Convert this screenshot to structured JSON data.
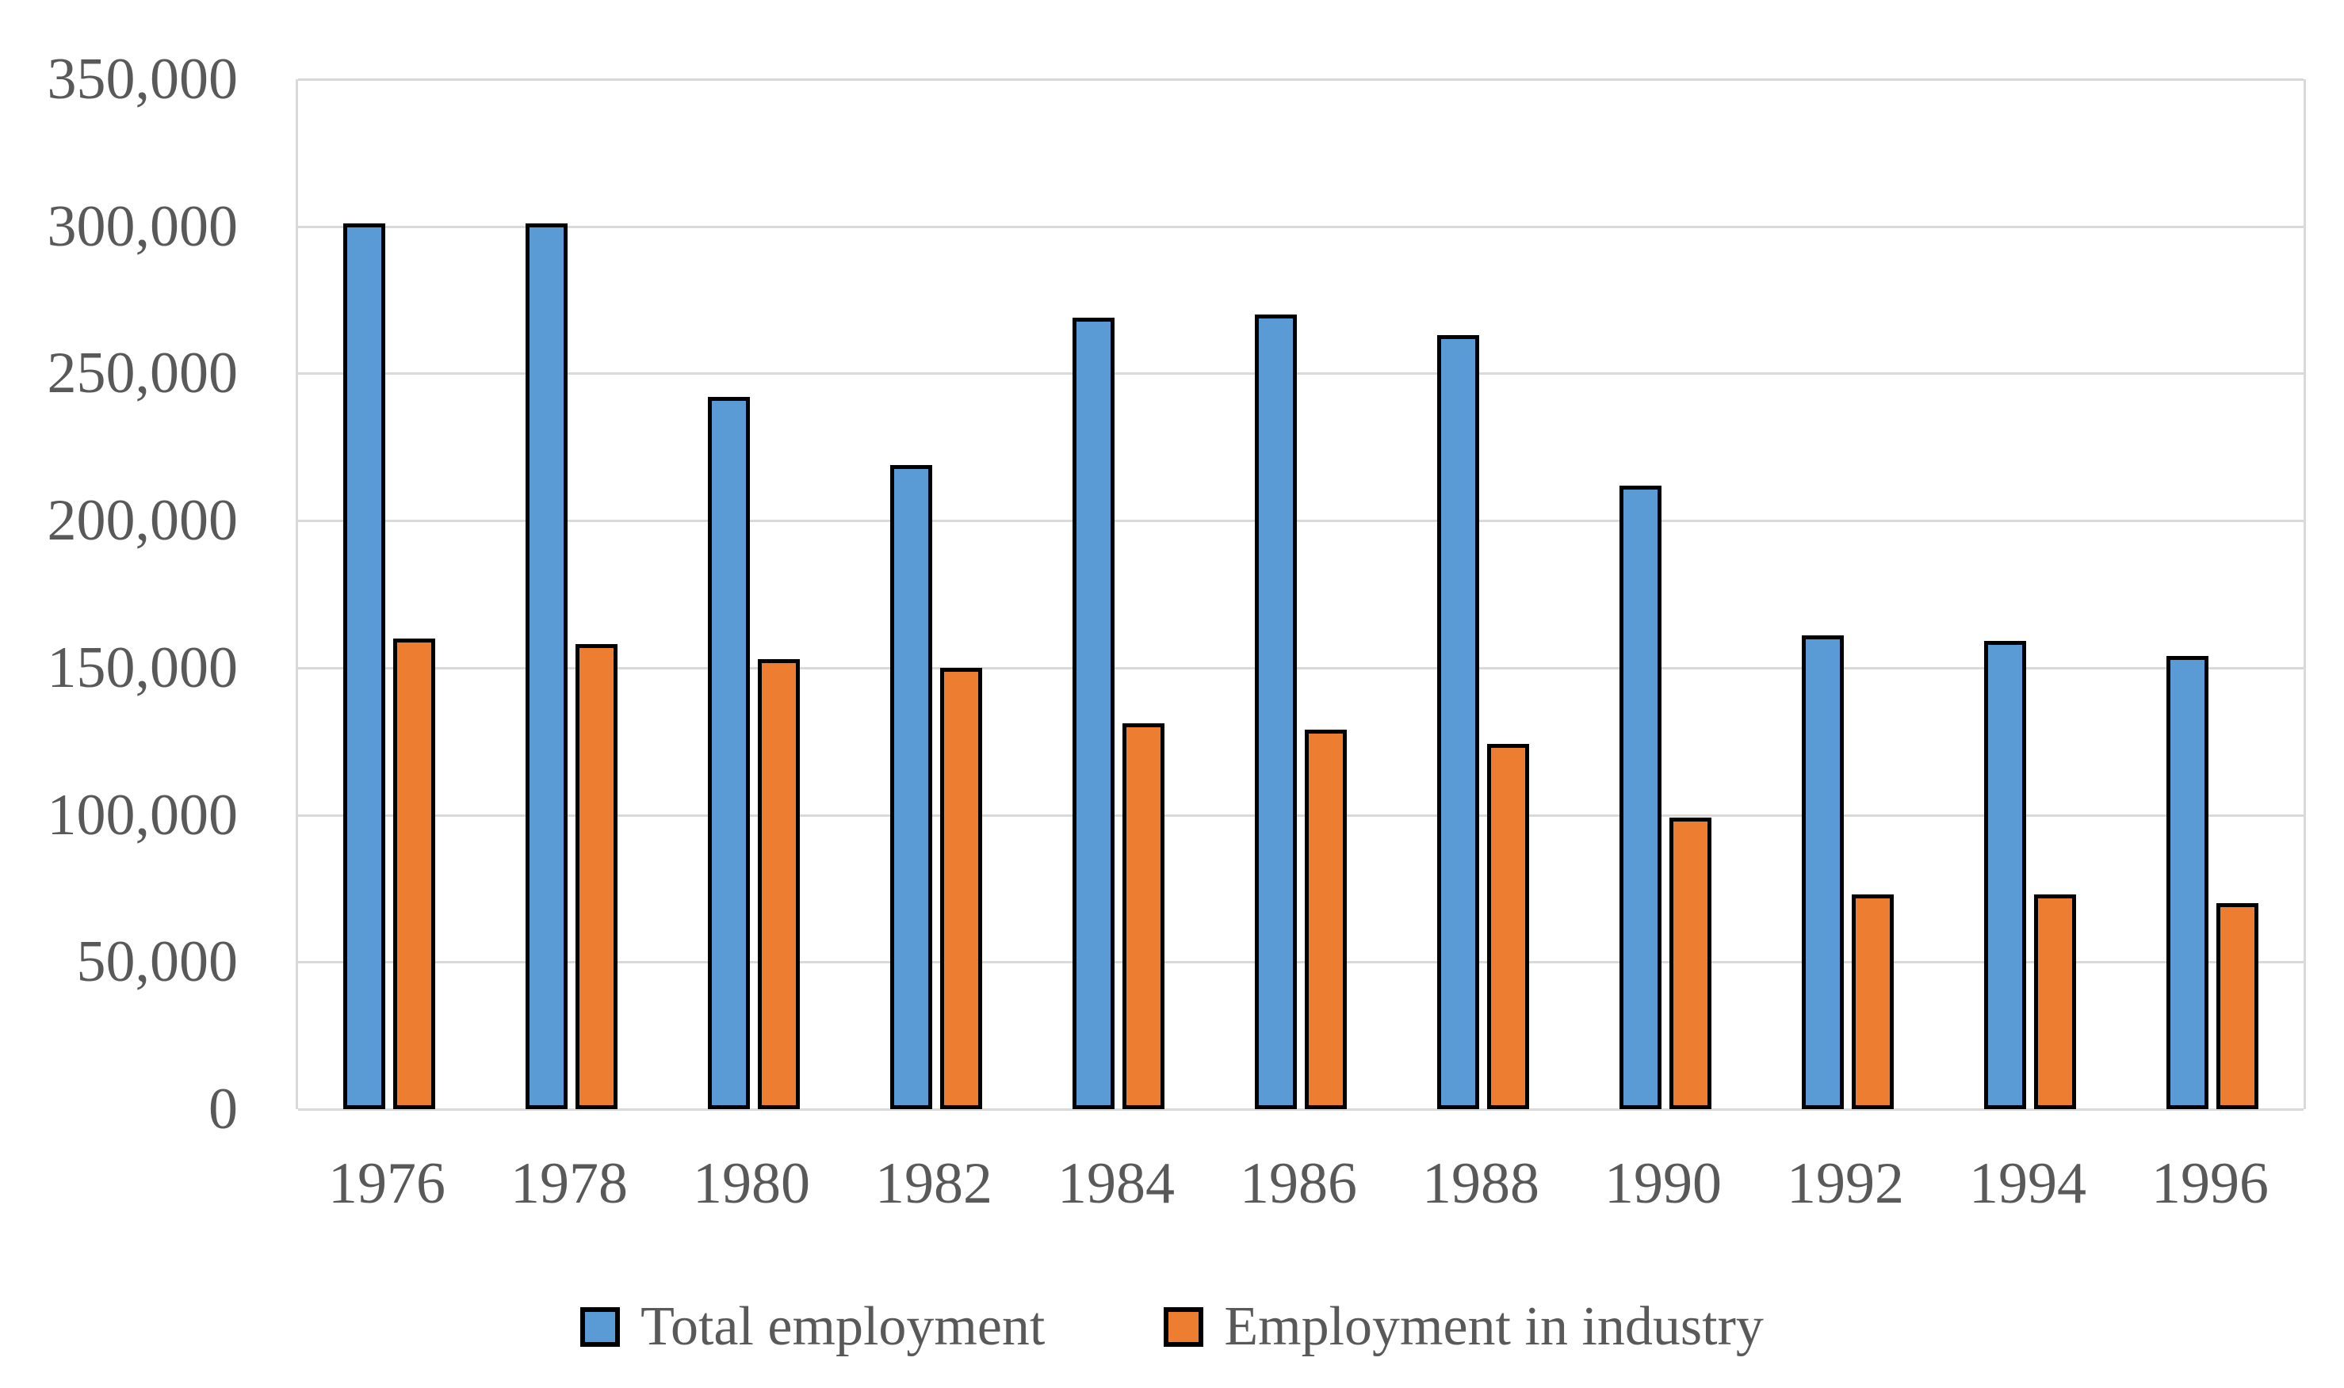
{
  "chart_data": {
    "type": "bar",
    "title": "",
    "xlabel": "",
    "ylabel": "",
    "categories": [
      "1976",
      "1978",
      "1980",
      "1982",
      "1984",
      "1986",
      "1988",
      "1990",
      "1992",
      "1994",
      "1996"
    ],
    "series": [
      {
        "name": "Total employment",
        "color": "#5B9BD5",
        "values": [
          301000,
          301000,
          242000,
          219000,
          269000,
          270000,
          263000,
          212000,
          161000,
          159000,
          154000
        ]
      },
      {
        "name": "Employment in industry",
        "color": "#ED7D31",
        "values": [
          160000,
          158000,
          153000,
          150000,
          131000,
          129000,
          124000,
          99000,
          73000,
          73000,
          70000
        ]
      }
    ],
    "ylim": [
      0,
      350000
    ],
    "ytick_interval": 50000,
    "ytick_labels": [
      "350,000",
      "300,000",
      "250,000",
      "200,000",
      "150,000",
      "100,000",
      "50,000",
      "0"
    ],
    "grid": true,
    "legend_position": "bottom",
    "bar_border_color": "#000000",
    "gridline_color": "#D9D9D9",
    "axis_text_color": "#595959"
  }
}
